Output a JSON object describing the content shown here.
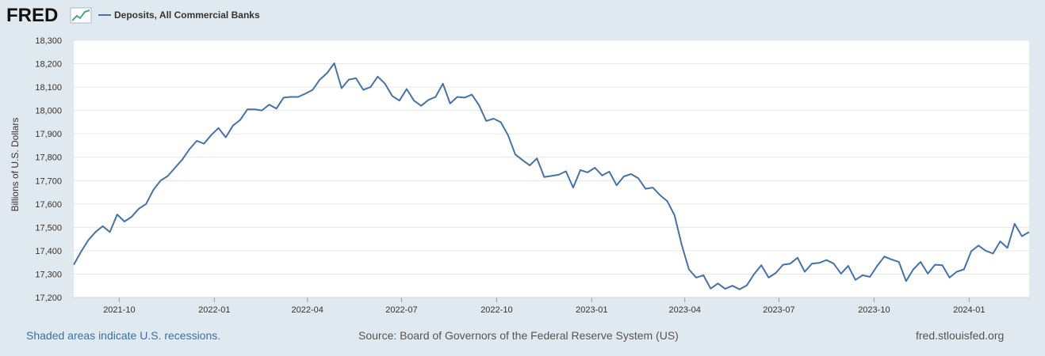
{
  "header": {
    "logo_text": "FRED",
    "legend_label": "Deposits, All Commercial Banks"
  },
  "colors": {
    "line": "#4572a7",
    "plot_background": "#ffffff",
    "page_background": "#e1e9f0",
    "gridline": "#e6e6e6",
    "link": "#3e6ea3"
  },
  "footer": {
    "recession_note": "Shaded areas indicate U.S. recessions.",
    "source": "Source: Board of Governors of the Federal Reserve System (US)",
    "site": "fred.stlouisfed.org"
  },
  "chart_data": {
    "type": "line",
    "title": "",
    "xlabel": "",
    "ylabel": "Billions of U.S. Dollars",
    "ylim": [
      17200,
      18300
    ],
    "xlim": [
      "2021-08-18",
      "2024-02-28"
    ],
    "grid": true,
    "legend": "top-left",
    "yticks": [
      "17,200",
      "17,300",
      "17,400",
      "17,500",
      "17,600",
      "17,700",
      "17,800",
      "17,900",
      "18,000",
      "18,100",
      "18,200",
      "18,300"
    ],
    "xticks": [
      {
        "date": "2021-10-01",
        "label": "2021-10"
      },
      {
        "date": "2022-01-01",
        "label": "2022-01"
      },
      {
        "date": "2022-04-01",
        "label": "2022-04"
      },
      {
        "date": "2022-07-01",
        "label": "2022-07"
      },
      {
        "date": "2022-10-01",
        "label": "2022-10"
      },
      {
        "date": "2023-01-01",
        "label": "2023-01"
      },
      {
        "date": "2023-04-01",
        "label": "2023-04"
      },
      {
        "date": "2023-07-01",
        "label": "2023-07"
      },
      {
        "date": "2023-10-01",
        "label": "2023-10"
      },
      {
        "date": "2024-01-01",
        "label": "2024-01"
      }
    ],
    "series": [
      {
        "name": "Deposits, All Commercial Banks",
        "start_date": "2021-08-18",
        "step_days": 7,
        "values": [
          17340,
          17395,
          17445,
          17480,
          17505,
          17480,
          17555,
          17525,
          17545,
          17580,
          17600,
          17660,
          17700,
          17720,
          17755,
          17790,
          17835,
          17870,
          17858,
          17895,
          17925,
          17885,
          17935,
          17960,
          18005,
          18005,
          18000,
          18025,
          18008,
          18055,
          18058,
          18058,
          18072,
          18088,
          18132,
          18160,
          18202,
          18095,
          18132,
          18138,
          18088,
          18100,
          18145,
          18115,
          18062,
          18042,
          18092,
          18042,
          18020,
          18045,
          18058,
          18115,
          18030,
          18058,
          18055,
          18068,
          18022,
          17955,
          17965,
          17950,
          17895,
          17812,
          17788,
          17765,
          17795,
          17715,
          17720,
          17725,
          17740,
          17670,
          17745,
          17735,
          17755,
          17722,
          17738,
          17680,
          17718,
          17728,
          17710,
          17665,
          17670,
          17638,
          17612,
          17552,
          17425,
          17320,
          17285,
          17295,
          17238,
          17260,
          17237,
          17250,
          17235,
          17252,
          17300,
          17338,
          17285,
          17305,
          17340,
          17345,
          17370,
          17310,
          17345,
          17348,
          17360,
          17345,
          17302,
          17335,
          17275,
          17295,
          17288,
          17335,
          17375,
          17362,
          17352,
          17270,
          17320,
          17352,
          17302,
          17340,
          17338,
          17285,
          17310,
          17320,
          17398,
          17422,
          17400,
          17388,
          17440,
          17412,
          17515,
          17462,
          17480
        ]
      }
    ]
  }
}
